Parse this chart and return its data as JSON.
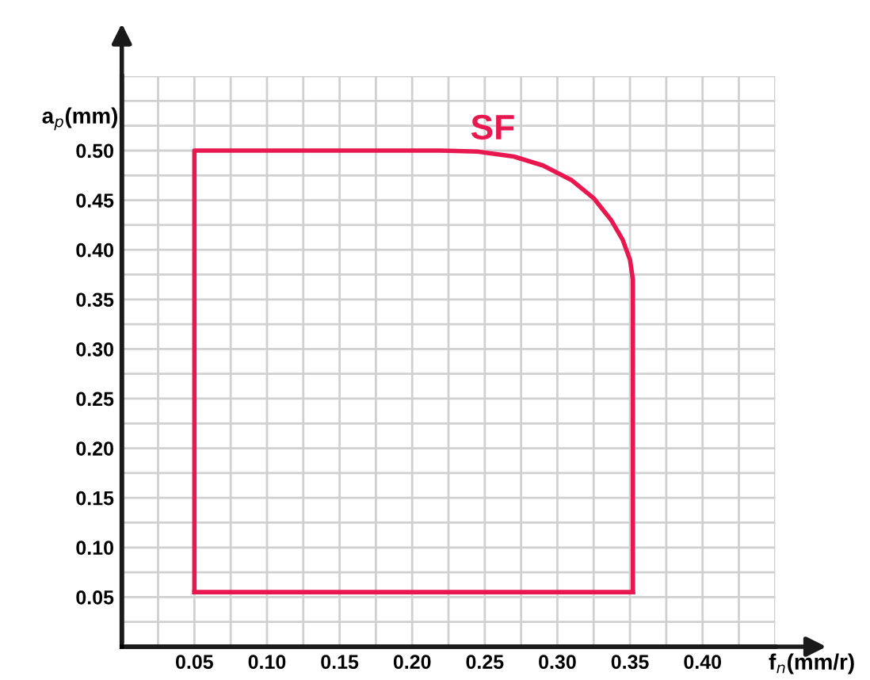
{
  "chart_data": {
    "type": "line",
    "xlabel": "f$_{n}$(mm/r)",
    "ylabel": "a$_{p}$(mm)",
    "series": [
      {
        "name": "SF",
        "color": "#e8174f",
        "x": [
          0.05,
          0.05,
          0.22,
          0.245,
          0.27,
          0.29,
          0.31,
          0.325,
          0.337,
          0.345,
          0.35,
          0.352,
          0.352
        ],
        "values": [
          0.055,
          0.5,
          0.5,
          0.499,
          0.494,
          0.485,
          0.47,
          0.452,
          0.43,
          0.41,
          0.39,
          0.37,
          0.055
        ]
      },
      {
        "color": "#e8174f",
        "x": [
          0.05,
          0.352
        ],
        "values": [
          0.055,
          0.055
        ]
      }
    ],
    "xlim": [
      0,
      0.45
    ],
    "ylim": [
      0,
      0.575
    ],
    "xticks": [
      {
        "value": 0.025,
        "label": null
      },
      {
        "value": 0.05,
        "label": "0.05"
      },
      {
        "value": 0.075,
        "label": null
      },
      {
        "value": 0.1,
        "label": "0.10"
      },
      {
        "value": 0.125,
        "label": null
      },
      {
        "value": 0.15,
        "label": "0.15"
      },
      {
        "value": 0.175,
        "label": null
      },
      {
        "value": 0.2,
        "label": "0.20"
      },
      {
        "value": 0.225,
        "label": null
      },
      {
        "value": 0.25,
        "label": "0.25"
      },
      {
        "value": 0.275,
        "label": null
      },
      {
        "value": 0.3,
        "label": "0.30"
      },
      {
        "value": 0.325,
        "label": null
      },
      {
        "value": 0.35,
        "label": "0.35"
      },
      {
        "value": 0.375,
        "label": null
      },
      {
        "value": 0.4,
        "label": "0.40"
      },
      {
        "value": 0.425,
        "label": null
      },
      {
        "value": 0.45,
        "label": null
      }
    ],
    "yticks": [
      {
        "value": 0.025,
        "label": null
      },
      {
        "value": 0.05,
        "label": "0.05"
      },
      {
        "value": 0.075,
        "label": null
      },
      {
        "value": 0.1,
        "label": "0.10"
      },
      {
        "value": 0.125,
        "label": null
      },
      {
        "value": 0.15,
        "label": "0.15"
      },
      {
        "value": 0.175,
        "label": null
      },
      {
        "value": 0.2,
        "label": "0.20"
      },
      {
        "value": 0.225,
        "label": null
      },
      {
        "value": 0.25,
        "label": "0.25"
      },
      {
        "value": 0.275,
        "label": null
      },
      {
        "value": 0.3,
        "label": "0.30"
      },
      {
        "value": 0.325,
        "label": null
      },
      {
        "value": 0.35,
        "label": "0.35"
      },
      {
        "value": 0.375,
        "label": null
      },
      {
        "value": 0.4,
        "label": "0.40"
      },
      {
        "value": 0.425,
        "label": null
      },
      {
        "value": 0.45,
        "label": "0.45"
      },
      {
        "value": 0.475,
        "label": null
      },
      {
        "value": 0.5,
        "label": "0.50"
      },
      {
        "value": 0.525,
        "label": null
      },
      {
        "value": 0.55,
        "label": null
      },
      {
        "value": 0.575,
        "label": null
      }
    ],
    "grid": true,
    "marker": "none",
    "line_style": "solid"
  }
}
